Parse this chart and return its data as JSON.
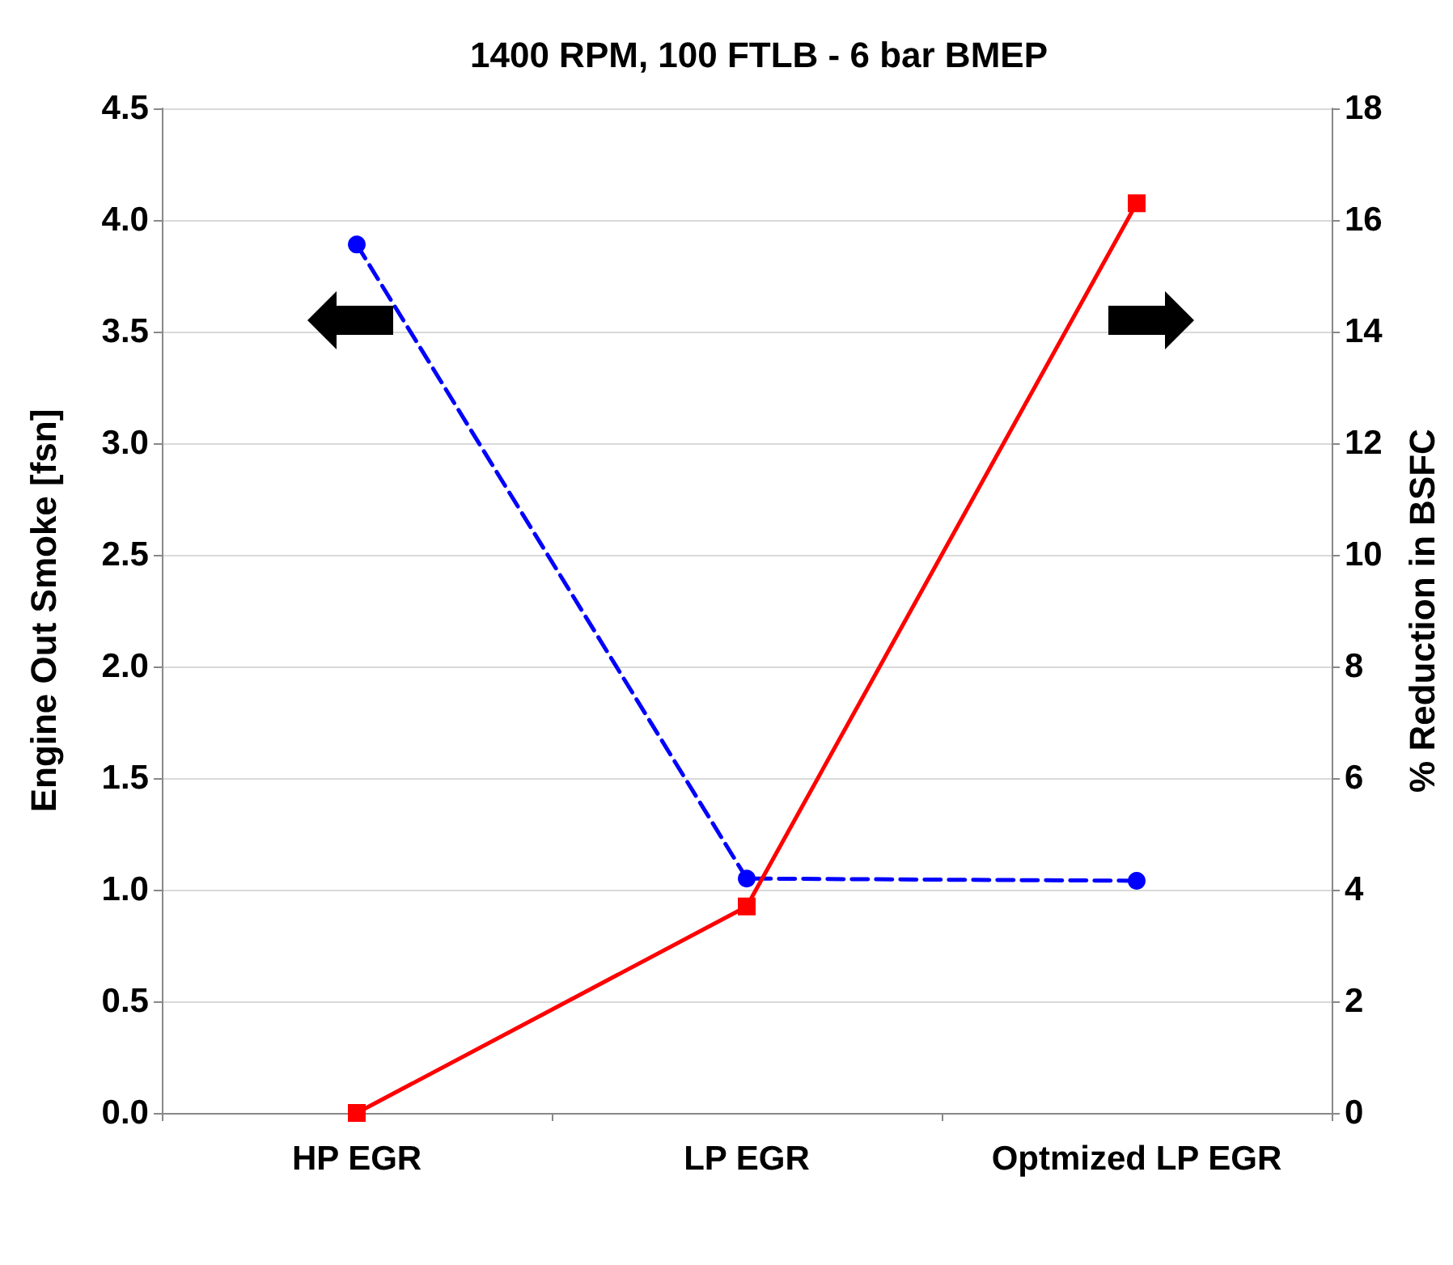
{
  "chart_data": {
    "type": "line",
    "title": "1400 RPM, 100 FTLB - 6 bar BMEP",
    "ylabel": "Engine Out Smoke [fsn]",
    "y2label": "% Reduction in BSFC",
    "categories": [
      "HP EGR",
      "LP EGR",
      "Optmized LP EGR"
    ],
    "series": [
      {
        "color": "#0000ff",
        "values": [
          3.89,
          1.05,
          1.04
        ],
        "marker": "circle",
        "line_style": "dashed"
      },
      {
        "color": "#ff0000",
        "values": [
          0,
          3.7,
          16.3
        ],
        "marker": "square",
        "line_style": "solid",
        "axis": "y2"
      }
    ],
    "ylim": [
      0,
      4.5
    ],
    "yticks": [
      {
        "value": 0,
        "label": "0.0"
      },
      {
        "value": 0.5,
        "label": "0.5"
      },
      {
        "value": 1,
        "label": "1.0"
      },
      {
        "value": 1.5,
        "label": "1.5"
      },
      {
        "value": 2,
        "label": "2.0"
      },
      {
        "value": 2.5,
        "label": "2.5"
      },
      {
        "value": 3,
        "label": "3.0"
      },
      {
        "value": 3.5,
        "label": "3.5"
      },
      {
        "value": 4,
        "label": "4.0"
      },
      {
        "value": 4.5,
        "label": "4.5"
      }
    ],
    "y2lim": [
      0,
      18
    ],
    "y2ticks": [
      0,
      2,
      4,
      6,
      8,
      10,
      12,
      14,
      16,
      18
    ],
    "grid": "y"
  }
}
